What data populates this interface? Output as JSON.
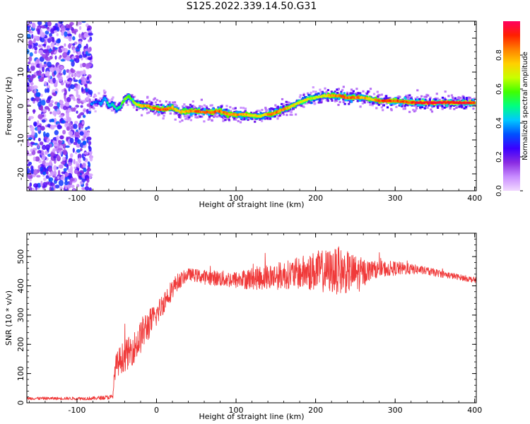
{
  "title": "S125.2022.339.14.50.G31",
  "chart_data": [
    {
      "type": "heatmap",
      "title": "S125.2022.339.14.50.G31",
      "xlabel": "Height of straight line (km)",
      "ylabel": "Frequency (Hz)",
      "xlim": [
        -163,
        402
      ],
      "ylim": [
        -25,
        25
      ],
      "x_ticks": [
        "-100",
        "0",
        "100",
        "200",
        "300",
        "400"
      ],
      "y_ticks": [
        "-20",
        "-10",
        "0",
        "10",
        "20"
      ],
      "colorbar": {
        "label": "Normalized spectral amplitude",
        "range": [
          0,
          1
        ],
        "ticks": [
          "0.0",
          "0.2",
          "0.4",
          "0.6",
          "0.8"
        ],
        "colormap": [
          "#f2d9ff",
          "#c88cff",
          "#8a2be2",
          "#3a00ff",
          "#0050ff",
          "#00c8ff",
          "#00ff80",
          "#40ff00",
          "#c8ff00",
          "#ffd000",
          "#ff8000",
          "#ff2000",
          "#ff0060"
        ]
      },
      "noise_region_x": [
        -163,
        -82
      ],
      "ridge": {
        "x": [
          -82,
          -75,
          -70,
          -65,
          -60,
          -55,
          -50,
          -45,
          -40,
          -35,
          -30,
          -25,
          -20,
          -10,
          0,
          10,
          20,
          30,
          40,
          50,
          60,
          70,
          80,
          90,
          100,
          110,
          120,
          130,
          140,
          150,
          160,
          170,
          180,
          190,
          200,
          210,
          220,
          230,
          240,
          250,
          260,
          270,
          280,
          290,
          300,
          320,
          340,
          360,
          380,
          400
        ],
        "frequency": [
          0.5,
          1.5,
          0.5,
          2.5,
          0,
          0.5,
          -1,
          0,
          2,
          3,
          1.5,
          0.5,
          0,
          0,
          -0.8,
          -1,
          -0.5,
          -1.8,
          -1.5,
          -1.5,
          -1.8,
          -1.8,
          -1.5,
          -2.5,
          -2.5,
          -2.5,
          -2.8,
          -3,
          -2.5,
          -2,
          -1,
          0,
          1,
          2,
          2.5,
          3,
          3,
          3,
          2.5,
          2.5,
          2.5,
          2,
          1.5,
          1.5,
          1.5,
          1,
          1,
          1,
          1,
          1
        ],
        "amplitude": [
          0.35,
          0.3,
          0.35,
          0.4,
          0.45,
          0.45,
          0.45,
          0.5,
          0.6,
          0.6,
          0.55,
          0.65,
          0.75,
          0.8,
          0.85,
          0.85,
          0.8,
          0.75,
          0.8,
          0.85,
          0.85,
          0.85,
          0.85,
          0.8,
          0.8,
          0.8,
          0.75,
          0.7,
          0.8,
          0.85,
          0.8,
          0.75,
          0.7,
          0.7,
          0.65,
          0.7,
          0.8,
          0.85,
          0.85,
          0.85,
          0.8,
          0.75,
          0.85,
          0.9,
          0.85,
          0.9,
          0.95,
          0.95,
          0.95,
          0.9
        ]
      }
    },
    {
      "type": "line",
      "xlabel": "Height of straight line (km)",
      "ylabel": "SNR (10 * v/v)",
      "xlim": [
        -163,
        402
      ],
      "ylim": [
        0,
        580
      ],
      "x_ticks": [
        "-100",
        "0",
        "100",
        "200",
        "300",
        "400"
      ],
      "y_ticks": [
        "0",
        "100",
        "200",
        "300",
        "400",
        "500"
      ],
      "color": "#f03a3a",
      "envelope": {
        "x": [
          -163,
          -120,
          -80,
          -55,
          -52,
          -45,
          -35,
          -25,
          -15,
          0,
          10,
          25,
          40,
          60,
          100,
          140,
          170,
          200,
          230,
          255,
          270,
          300,
          330,
          360,
          380,
          400,
          402
        ],
        "mean": [
          15,
          15,
          15,
          20,
          120,
          150,
          170,
          200,
          250,
          300,
          350,
          410,
          440,
          430,
          420,
          430,
          440,
          450,
          450,
          440,
          455,
          460,
          455,
          440,
          430,
          420,
          418
        ],
        "spread": [
          5,
          5,
          6,
          8,
          40,
          50,
          55,
          55,
          60,
          40,
          40,
          30,
          20,
          25,
          30,
          45,
          50,
          70,
          80,
          60,
          30,
          25,
          15,
          12,
          10,
          10,
          10
        ]
      }
    }
  ]
}
